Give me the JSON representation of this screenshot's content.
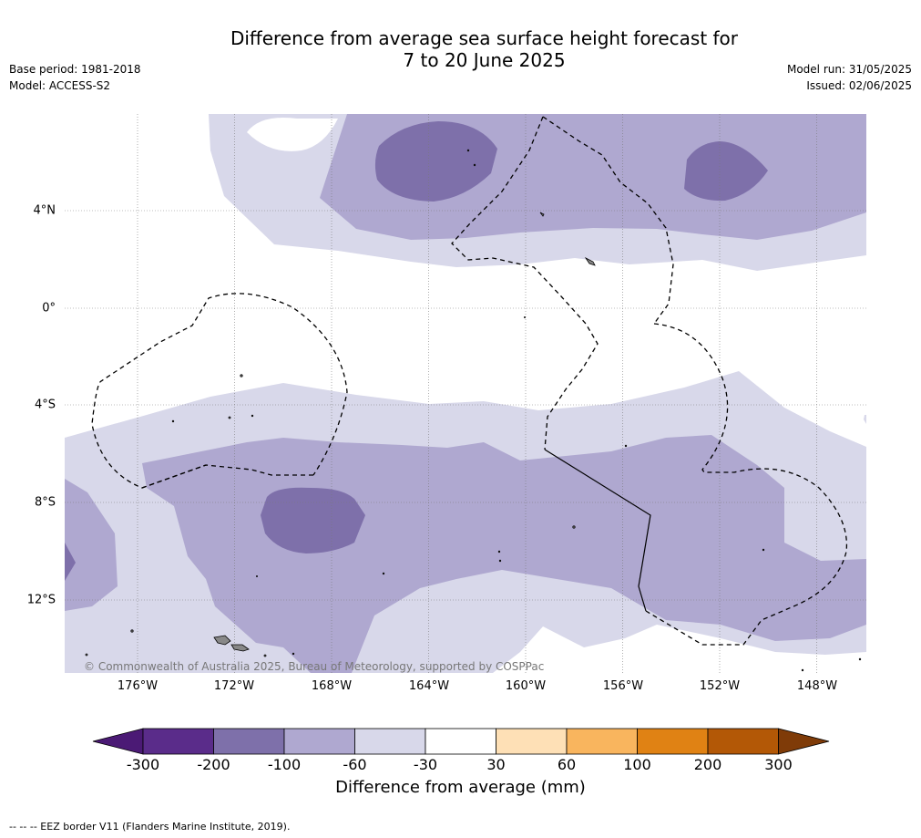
{
  "title_line1": "Difference from average sea surface height forecast for",
  "title_line2": "7 to 20 June 2025",
  "base_period": "Base period: 1981-2018",
  "model": "Model: ACCESS-S2",
  "model_run": "Model run: 31/05/2025",
  "issued": "Issued: 02/06/2025",
  "lat_labels": [
    "4°N",
    "0°",
    "4°S",
    "8°S",
    "12°S"
  ],
  "lon_labels": [
    "176°W",
    "172°W",
    "168°W",
    "164°W",
    "160°W",
    "156°W",
    "152°W",
    "148°W"
  ],
  "copyright": "© Commonwealth of Australia 2025, Bureau of Meteorology, supported by COSPPac",
  "colorbar": {
    "label": "Difference from average (mm)",
    "ticks": [
      "-300",
      "-200",
      "-100",
      "-60",
      "-30",
      "30",
      "60",
      "100",
      "200",
      "300"
    ],
    "colors": [
      "#4b1a75",
      "#5a2c8a",
      "#7e70aa",
      "#afa8d0",
      "#d8d8ea",
      "#ffffff",
      "#fee0b6",
      "#f9b55e",
      "#e08214",
      "#b35806",
      "#7f3b08"
    ]
  },
  "footer": "--  --  -- EEZ border V11 (Flanders Marine Institute, 2019)."
}
